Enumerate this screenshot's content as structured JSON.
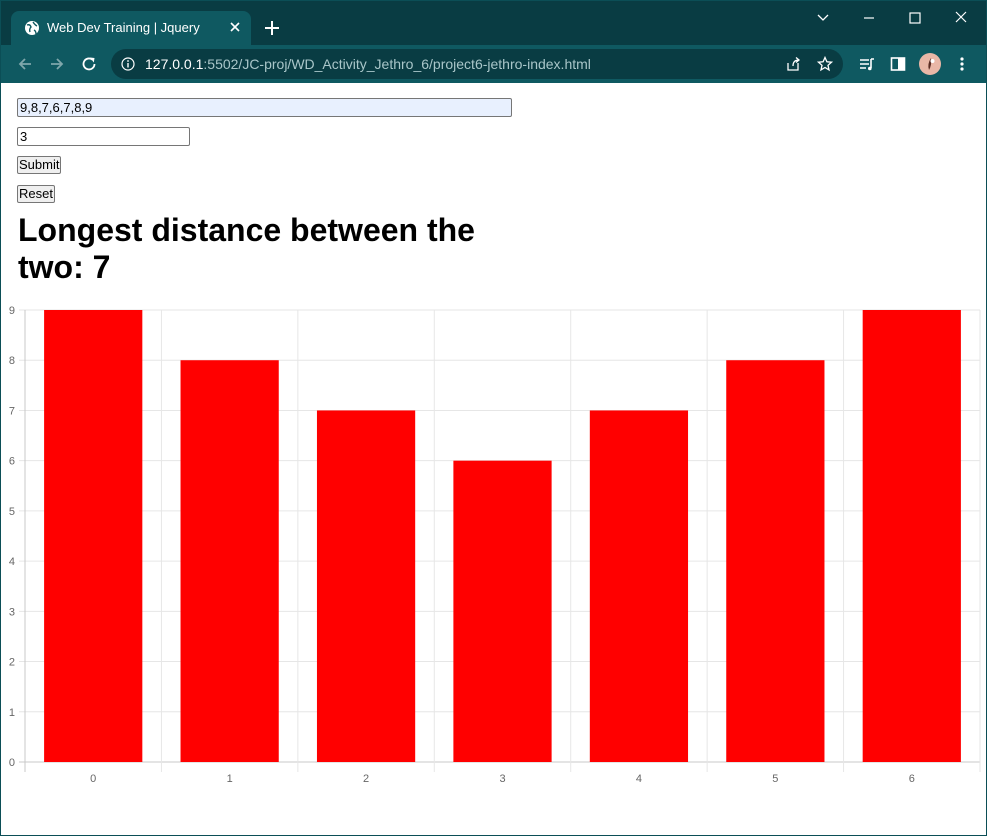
{
  "browser": {
    "tab_title": "Web Dev Training | Jquery",
    "url_host": "127.0.0.1",
    "url_rest": ":5502/JC-proj/WD_Activity_Jethro_6/project6-jethro-index.html",
    "icons": [
      "globe-icon",
      "close-icon",
      "new-tab-icon",
      "chevron-down-icon",
      "minimize-icon",
      "maximize-icon",
      "close-window-icon",
      "back-icon",
      "forward-icon",
      "reload-icon",
      "info-icon",
      "share-icon",
      "star-icon",
      "reading-list-icon",
      "side-panel-icon",
      "profile-avatar",
      "menu-icon"
    ]
  },
  "form": {
    "array_value": "9,8,7,6,7,8,9",
    "k_value": "3",
    "submit_label": "Submit",
    "reset_label": "Reset"
  },
  "result": {
    "text": "Longest distance between the two: 7"
  },
  "chart_data": {
    "type": "bar",
    "categories": [
      "0",
      "1",
      "2",
      "3",
      "4",
      "5",
      "6"
    ],
    "values": [
      9,
      8,
      7,
      6,
      7,
      8,
      9
    ],
    "ylim": [
      0,
      9
    ],
    "yticks": [
      "0",
      "1",
      "2",
      "3",
      "4",
      "5",
      "6",
      "7",
      "8",
      "9"
    ],
    "bar_color": "#ff0000",
    "grid": true
  }
}
